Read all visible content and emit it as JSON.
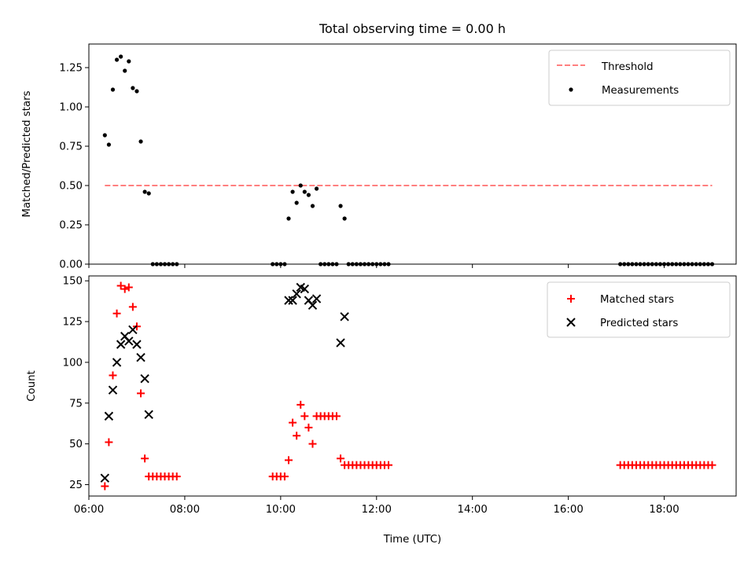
{
  "chart_data": [
    {
      "type": "scatter",
      "title": "Total observing time = 0.00 h",
      "xlabel": "",
      "ylabel": "Matched/Predicted stars",
      "xlim": [
        "06:00",
        "19:30"
      ],
      "ylim": [
        0,
        1.4
      ],
      "yticks": [
        0.0,
        0.25,
        0.5,
        0.75,
        1.0,
        1.25
      ],
      "ytick_labels": [
        "0.00",
        "0.25",
        "0.50",
        "0.75",
        "1.00",
        "1.25"
      ],
      "legend_position": "top-right",
      "threshold": {
        "name": "Threshold",
        "value": 0.5,
        "x_start": "06:20",
        "x_end": "19:00",
        "color": "#ff7f7f",
        "style": "dashed"
      },
      "series": [
        {
          "name": "Measurements",
          "color": "#000000",
          "marker": "dot",
          "points": [
            [
              "06:20",
              0.82
            ],
            [
              "06:25",
              0.76
            ],
            [
              "06:30",
              1.11
            ],
            [
              "06:35",
              1.3
            ],
            [
              "06:40",
              1.32
            ],
            [
              "06:45",
              1.23
            ],
            [
              "06:50",
              1.29
            ],
            [
              "06:55",
              1.12
            ],
            [
              "07:00",
              1.1
            ],
            [
              "07:05",
              0.78
            ],
            [
              "07:10",
              0.46
            ],
            [
              "07:15",
              0.45
            ],
            [
              "07:20",
              0.0
            ],
            [
              "07:25",
              0.0
            ],
            [
              "07:30",
              0.0
            ],
            [
              "07:35",
              0.0
            ],
            [
              "07:40",
              0.0
            ],
            [
              "07:45",
              0.0
            ],
            [
              "07:50",
              0.0
            ],
            [
              "09:50",
              0.0
            ],
            [
              "09:55",
              0.0
            ],
            [
              "10:00",
              0.0
            ],
            [
              "10:05",
              0.0
            ],
            [
              "10:10",
              0.29
            ],
            [
              "10:15",
              0.46
            ],
            [
              "10:20",
              0.39
            ],
            [
              "10:25",
              0.5
            ],
            [
              "10:30",
              0.46
            ],
            [
              "10:35",
              0.44
            ],
            [
              "10:40",
              0.37
            ],
            [
              "10:45",
              0.48
            ],
            [
              "10:50",
              0.0
            ],
            [
              "10:55",
              0.0
            ],
            [
              "11:00",
              0.0
            ],
            [
              "11:05",
              0.0
            ],
            [
              "11:10",
              0.0
            ],
            [
              "11:15",
              0.37
            ],
            [
              "11:20",
              0.29
            ],
            [
              "11:25",
              0.0
            ],
            [
              "11:30",
              0.0
            ],
            [
              "11:35",
              0.0
            ],
            [
              "11:40",
              0.0
            ],
            [
              "11:45",
              0.0
            ],
            [
              "11:50",
              0.0
            ],
            [
              "11:55",
              0.0
            ],
            [
              "12:00",
              0.0
            ],
            [
              "12:05",
              0.0
            ],
            [
              "12:10",
              0.0
            ],
            [
              "12:15",
              0.0
            ],
            [
              "17:05",
              0.0
            ],
            [
              "17:10",
              0.0
            ],
            [
              "17:15",
              0.0
            ],
            [
              "17:20",
              0.0
            ],
            [
              "17:25",
              0.0
            ],
            [
              "17:30",
              0.0
            ],
            [
              "17:35",
              0.0
            ],
            [
              "17:40",
              0.0
            ],
            [
              "17:45",
              0.0
            ],
            [
              "17:50",
              0.0
            ],
            [
              "17:55",
              0.0
            ],
            [
              "18:00",
              0.0
            ],
            [
              "18:05",
              0.0
            ],
            [
              "18:10",
              0.0
            ],
            [
              "18:15",
              0.0
            ],
            [
              "18:20",
              0.0
            ],
            [
              "18:25",
              0.0
            ],
            [
              "18:30",
              0.0
            ],
            [
              "18:35",
              0.0
            ],
            [
              "18:40",
              0.0
            ],
            [
              "18:45",
              0.0
            ],
            [
              "18:50",
              0.0
            ],
            [
              "18:55",
              0.0
            ],
            [
              "19:00",
              0.0
            ]
          ]
        }
      ]
    },
    {
      "type": "scatter",
      "title": "",
      "xlabel": "Time (UTC)",
      "ylabel": "Count",
      "xlim": [
        "06:00",
        "19:30"
      ],
      "ylim": [
        18,
        153
      ],
      "xticks": [
        "06:00",
        "08:00",
        "10:00",
        "12:00",
        "14:00",
        "16:00",
        "18:00"
      ],
      "yticks": [
        25,
        50,
        75,
        100,
        125,
        150
      ],
      "ytick_labels": [
        "25",
        "50",
        "75",
        "100",
        "125",
        "150"
      ],
      "legend_position": "top-right",
      "series": [
        {
          "name": "Matched stars",
          "color": "#ff0000",
          "marker": "plus",
          "points": [
            [
              "06:20",
              24
            ],
            [
              "06:25",
              51
            ],
            [
              "06:30",
              92
            ],
            [
              "06:35",
              130
            ],
            [
              "06:40",
              147
            ],
            [
              "06:45",
              145
            ],
            [
              "06:50",
              146
            ],
            [
              "06:55",
              134
            ],
            [
              "07:00",
              122
            ],
            [
              "07:05",
              81
            ],
            [
              "07:10",
              41
            ],
            [
              "07:15",
              30
            ],
            [
              "07:20",
              30
            ],
            [
              "07:25",
              30
            ],
            [
              "07:30",
              30
            ],
            [
              "07:35",
              30
            ],
            [
              "07:40",
              30
            ],
            [
              "07:45",
              30
            ],
            [
              "07:50",
              30
            ],
            [
              "09:50",
              30
            ],
            [
              "09:55",
              30
            ],
            [
              "10:00",
              30
            ],
            [
              "10:05",
              30
            ],
            [
              "10:10",
              40
            ],
            [
              "10:15",
              63
            ],
            [
              "10:20",
              55
            ],
            [
              "10:25",
              74
            ],
            [
              "10:30",
              67
            ],
            [
              "10:35",
              60
            ],
            [
              "10:40",
              50
            ],
            [
              "10:45",
              67
            ],
            [
              "10:50",
              67
            ],
            [
              "10:55",
              67
            ],
            [
              "11:00",
              67
            ],
            [
              "11:05",
              67
            ],
            [
              "11:10",
              67
            ],
            [
              "11:15",
              41
            ],
            [
              "11:20",
              37
            ],
            [
              "11:25",
              37
            ],
            [
              "11:30",
              37
            ],
            [
              "11:35",
              37
            ],
            [
              "11:40",
              37
            ],
            [
              "11:45",
              37
            ],
            [
              "11:50",
              37
            ],
            [
              "11:55",
              37
            ],
            [
              "12:00",
              37
            ],
            [
              "12:05",
              37
            ],
            [
              "12:10",
              37
            ],
            [
              "12:15",
              37
            ],
            [
              "17:05",
              37
            ],
            [
              "17:10",
              37
            ],
            [
              "17:15",
              37
            ],
            [
              "17:20",
              37
            ],
            [
              "17:25",
              37
            ],
            [
              "17:30",
              37
            ],
            [
              "17:35",
              37
            ],
            [
              "17:40",
              37
            ],
            [
              "17:45",
              37
            ],
            [
              "17:50",
              37
            ],
            [
              "17:55",
              37
            ],
            [
              "18:00",
              37
            ],
            [
              "18:05",
              37
            ],
            [
              "18:10",
              37
            ],
            [
              "18:15",
              37
            ],
            [
              "18:20",
              37
            ],
            [
              "18:25",
              37
            ],
            [
              "18:30",
              37
            ],
            [
              "18:35",
              37
            ],
            [
              "18:40",
              37
            ],
            [
              "18:45",
              37
            ],
            [
              "18:50",
              37
            ],
            [
              "18:55",
              37
            ],
            [
              "19:00",
              37
            ]
          ]
        },
        {
          "name": "Predicted stars",
          "color": "#000000",
          "marker": "x",
          "points": [
            [
              "06:20",
              29
            ],
            [
              "06:25",
              67
            ],
            [
              "06:30",
              83
            ],
            [
              "06:35",
              100
            ],
            [
              "06:40",
              111
            ],
            [
              "06:45",
              116
            ],
            [
              "06:50",
              113
            ],
            [
              "06:55",
              120
            ],
            [
              "07:00",
              111
            ],
            [
              "07:05",
              103
            ],
            [
              "07:10",
              90
            ],
            [
              "07:15",
              68
            ],
            [
              "10:10",
              138
            ],
            [
              "10:15",
              138
            ],
            [
              "10:20",
              142
            ],
            [
              "10:25",
              146
            ],
            [
              "10:30",
              145
            ],
            [
              "10:35",
              138
            ],
            [
              "10:40",
              135
            ],
            [
              "10:45",
              139
            ],
            [
              "11:15",
              112
            ],
            [
              "11:20",
              128
            ]
          ]
        }
      ]
    }
  ]
}
